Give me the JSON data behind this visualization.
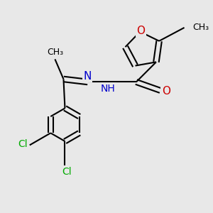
{
  "bg_color": "#e8e8e8",
  "bond_color": "#000000",
  "o_color": "#cc0000",
  "n_color": "#0000cc",
  "cl_color": "#00aa00",
  "bond_lw": 1.5,
  "font_size": 10,
  "figsize": [
    3.0,
    3.0
  ],
  "dpi": 100,
  "xlim": [
    0,
    10
  ],
  "ylim": [
    -1,
    10
  ]
}
